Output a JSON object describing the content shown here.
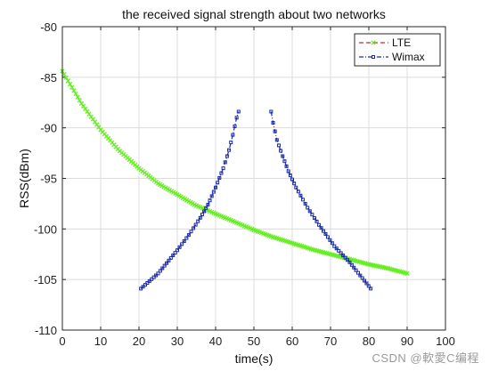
{
  "chart_data": {
    "type": "line",
    "title": "the received signal strength about two networks",
    "xlabel": "time(s)",
    "ylabel": "RSS(dBm)",
    "xlim": [
      0,
      100
    ],
    "ylim": [
      -110,
      -80
    ],
    "xticks": [
      0,
      10,
      20,
      30,
      40,
      50,
      60,
      70,
      80,
      90,
      100
    ],
    "yticks": [
      -80,
      -85,
      -90,
      -95,
      -100,
      -105,
      -110
    ],
    "grid": true,
    "legend_position": "top-right",
    "series": [
      {
        "name": "LTE",
        "color": "#3ec83a",
        "marker_color": "#66ee22",
        "line_style": "dashed",
        "marker": "x",
        "x": [
          0,
          5,
          10,
          15,
          20,
          25,
          30,
          35,
          40,
          45,
          50,
          55,
          60,
          65,
          70,
          75,
          80,
          85,
          90
        ],
        "y": [
          -84.4,
          -87.6,
          -90.2,
          -92.3,
          -94.0,
          -95.5,
          -96.6,
          -97.7,
          -98.5,
          -99.3,
          -100.1,
          -100.8,
          -101.4,
          -102.0,
          -102.5,
          -103.0,
          -103.5,
          -103.9,
          -104.4
        ]
      },
      {
        "name": "Wimax",
        "color": "#1a2aa8",
        "marker_color": "#1a2aa8",
        "line_style": "dashdot",
        "marker": "square",
        "segments": [
          {
            "x": [
              20.5,
              25,
              30,
              33,
              36,
              38,
              40,
              42,
              43.5,
              44.5,
              45.5,
              46
            ],
            "y": [
              -105.9,
              -104.4,
              -102.1,
              -100.6,
              -98.9,
              -97.6,
              -95.9,
              -94.0,
              -92.2,
              -90.7,
              -89.0,
              -88.4
            ]
          },
          {
            "x": [
              54.5,
              55,
              56,
              57.5,
              59,
              61,
              64,
              67,
              71,
              75,
              80.5
            ],
            "y": [
              -88.4,
              -89.5,
              -91.2,
              -92.8,
              -94.3,
              -95.9,
              -97.9,
              -99.6,
              -101.7,
              -103.3,
              -105.9
            ]
          }
        ]
      }
    ]
  },
  "watermark": "CSDN @軟愛C编程"
}
